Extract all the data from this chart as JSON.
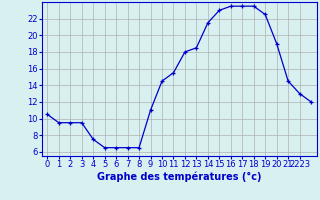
{
  "hours": [
    0,
    1,
    2,
    3,
    4,
    5,
    6,
    7,
    8,
    9,
    10,
    11,
    12,
    13,
    14,
    15,
    16,
    17,
    18,
    19,
    20,
    21,
    22,
    23
  ],
  "temps": [
    10.5,
    9.5,
    9.5,
    9.5,
    7.5,
    6.5,
    6.5,
    6.5,
    6.5,
    11.0,
    14.5,
    15.5,
    18.0,
    18.5,
    21.5,
    23.0,
    23.5,
    23.5,
    23.5,
    22.5,
    19.0,
    14.5,
    13.0,
    12.0
  ],
  "line_color": "#0000cc",
  "marker": "+",
  "bg_color": "#d8f0f0",
  "grid_color": "#b0b0b0",
  "xlabel": "Graphe des températures (°c)",
  "ylabel_ticks": [
    6,
    8,
    10,
    12,
    14,
    16,
    18,
    20,
    22
  ],
  "ylim": [
    5.5,
    24.0
  ],
  "xlim": [
    -0.5,
    23.5
  ],
  "xtick_positions": [
    0,
    1,
    2,
    3,
    4,
    5,
    6,
    7,
    8,
    9,
    10,
    11,
    12,
    13,
    14,
    15,
    16,
    17,
    18,
    19,
    20,
    21,
    22,
    23
  ],
  "xtick_labels": [
    "0",
    "1",
    "2",
    "3",
    "4",
    "5",
    "6",
    "7",
    "8",
    "9",
    "10",
    "11",
    "12",
    "13",
    "14",
    "15",
    "16",
    "17",
    "18",
    "19",
    "20",
    "21",
    "2223",
    ""
  ],
  "axis_color": "#0000cc",
  "label_fontsize": 7.0,
  "tick_fontsize": 6.0
}
